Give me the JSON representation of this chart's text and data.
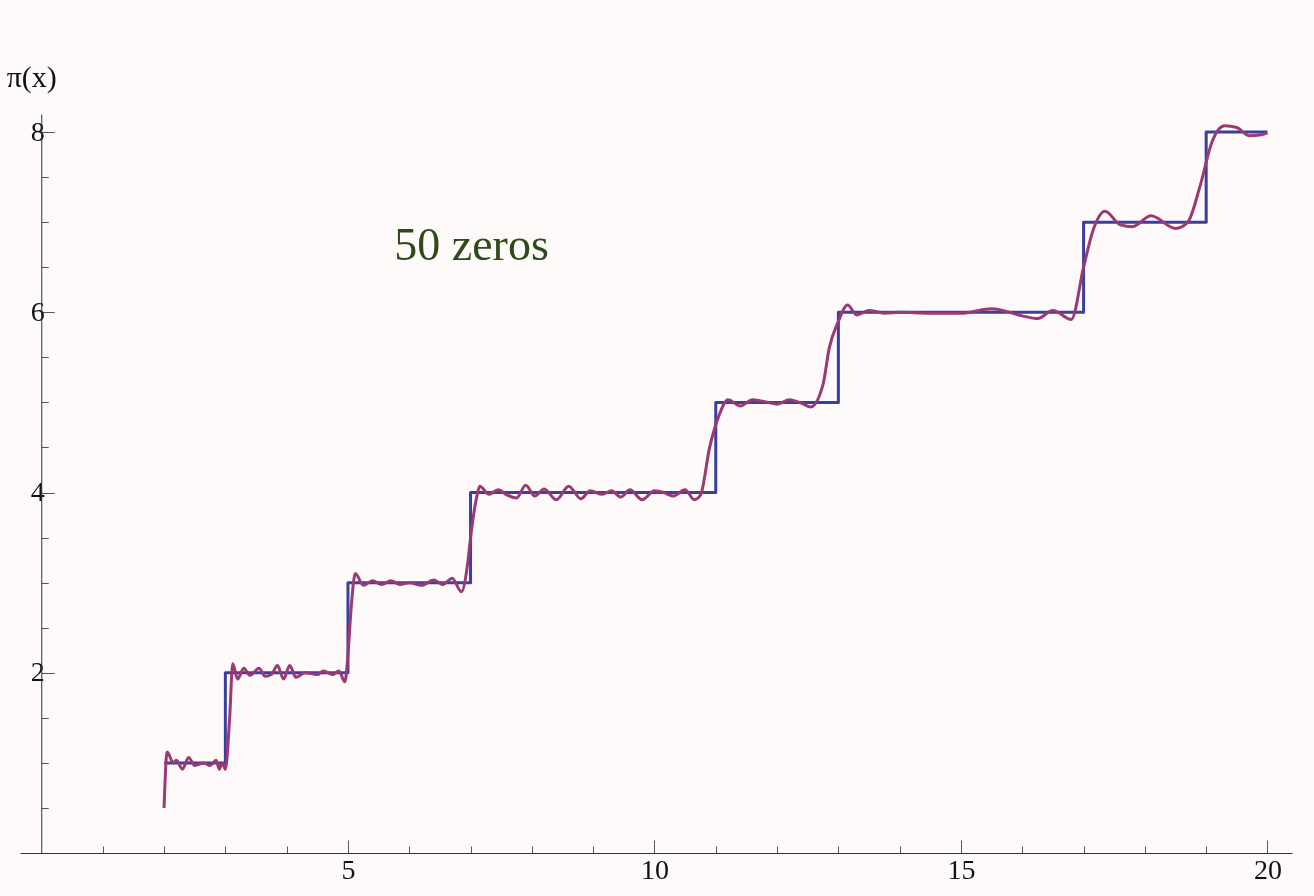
{
  "chart_data": {
    "type": "line",
    "ylabel": "π(x)",
    "annotations": [
      "50 zeros"
    ],
    "xlim": [
      -0.35,
      20.4
    ],
    "ylim": [
      0,
      8.2
    ],
    "xticks": [
      {
        "value": 1,
        "label": null
      },
      {
        "value": 2,
        "label": null
      },
      {
        "value": 3,
        "label": null
      },
      {
        "value": 4,
        "label": null
      },
      5,
      {
        "value": 6,
        "label": null
      },
      {
        "value": 7,
        "label": null
      },
      {
        "value": 8,
        "label": null
      },
      {
        "value": 9,
        "label": null
      },
      10,
      {
        "value": 11,
        "label": null
      },
      {
        "value": 12,
        "label": null
      },
      {
        "value": 13,
        "label": null
      },
      {
        "value": 14,
        "label": null
      },
      15,
      {
        "value": 16,
        "label": null
      },
      {
        "value": 17,
        "label": null
      },
      {
        "value": 18,
        "label": null
      },
      {
        "value": 19,
        "label": null
      },
      20
    ],
    "yticks": [
      {
        "value": 0.5,
        "label": null
      },
      {
        "value": 1,
        "label": null
      },
      {
        "value": 1.5,
        "label": null
      },
      2,
      {
        "value": 2.5,
        "label": null
      },
      {
        "value": 3,
        "label": null
      },
      {
        "value": 3.5,
        "label": null
      },
      4,
      {
        "value": 4.5,
        "label": null
      },
      {
        "value": 5,
        "label": null
      },
      {
        "value": 5.5,
        "label": null
      },
      6,
      {
        "value": 6.5,
        "label": null
      },
      {
        "value": 7,
        "label": null
      },
      {
        "value": 7.5,
        "label": null
      },
      8
    ],
    "series": [
      {
        "type": "step",
        "color": "#3a3f9c",
        "x": [
          2,
          3,
          5,
          7,
          11,
          13,
          17,
          19,
          20
        ],
        "values": [
          1,
          2,
          3,
          4,
          5,
          6,
          7,
          8,
          8
        ]
      },
      {
        "type": "line",
        "color": "#9b3a72",
        "x": [
          2.0,
          2.05,
          2.15,
          2.2,
          2.3,
          2.4,
          2.5,
          2.65,
          2.75,
          2.85,
          2.9,
          2.95,
          3.0,
          3.07,
          3.12,
          3.2,
          3.3,
          3.4,
          3.55,
          3.65,
          3.75,
          3.85,
          3.95,
          4.05,
          4.15,
          4.3,
          4.5,
          4.6,
          4.75,
          4.85,
          4.95,
          5.0,
          5.05,
          5.12,
          5.25,
          5.4,
          5.55,
          5.7,
          5.85,
          6.0,
          6.2,
          6.4,
          6.55,
          6.7,
          6.85,
          6.95,
          7.0,
          7.1,
          7.15,
          7.3,
          7.45,
          7.6,
          7.75,
          7.9,
          8.05,
          8.2,
          8.4,
          8.6,
          8.8,
          8.95,
          9.15,
          9.3,
          9.45,
          9.6,
          9.8,
          10.0,
          10.15,
          10.3,
          10.5,
          10.65,
          10.75,
          10.9,
          11.05,
          11.2,
          11.4,
          11.6,
          11.85,
          12.0,
          12.2,
          12.4,
          12.55,
          12.75,
          12.85,
          13.0,
          13.15,
          13.3,
          13.5,
          13.75,
          14.0,
          14.5,
          15.0,
          15.5,
          16.0,
          16.25,
          16.5,
          16.8,
          17.0,
          17.15,
          17.35,
          17.6,
          17.8,
          18.1,
          18.5,
          18.7,
          18.9,
          19.1,
          19.3,
          19.5,
          19.7,
          19.9,
          20.0
        ],
        "values": [
          0.5,
          1.12,
          1.0,
          1.03,
          0.93,
          1.06,
          0.97,
          1.0,
          0.97,
          1.03,
          0.93,
          1.0,
          0.93,
          1.5,
          2.1,
          1.93,
          2.05,
          1.97,
          2.05,
          1.96,
          1.98,
          2.08,
          1.93,
          2.08,
          1.95,
          2.0,
          1.98,
          2.02,
          1.98,
          2.02,
          1.9,
          2.2,
          2.7,
          3.1,
          2.97,
          3.02,
          2.98,
          3.02,
          2.98,
          3.0,
          2.97,
          3.03,
          2.98,
          3.05,
          2.9,
          3.2,
          3.5,
          3.95,
          4.07,
          3.98,
          4.03,
          3.97,
          3.94,
          4.08,
          3.96,
          4.04,
          3.92,
          4.07,
          3.93,
          4.02,
          3.98,
          4.02,
          3.95,
          4.03,
          3.92,
          4.02,
          4.0,
          3.96,
          4.03,
          3.92,
          3.97,
          4.5,
          4.85,
          5.03,
          4.96,
          5.03,
          5.0,
          4.98,
          5.03,
          4.99,
          4.95,
          5.2,
          5.6,
          5.9,
          6.08,
          5.97,
          6.02,
          5.99,
          6.0,
          5.99,
          5.99,
          6.04,
          5.96,
          5.93,
          6.02,
          5.92,
          6.5,
          6.9,
          7.12,
          6.97,
          6.95,
          7.07,
          6.93,
          7.0,
          7.4,
          7.9,
          8.07,
          8.05,
          7.96,
          7.97,
          7.99
        ]
      }
    ]
  }
}
